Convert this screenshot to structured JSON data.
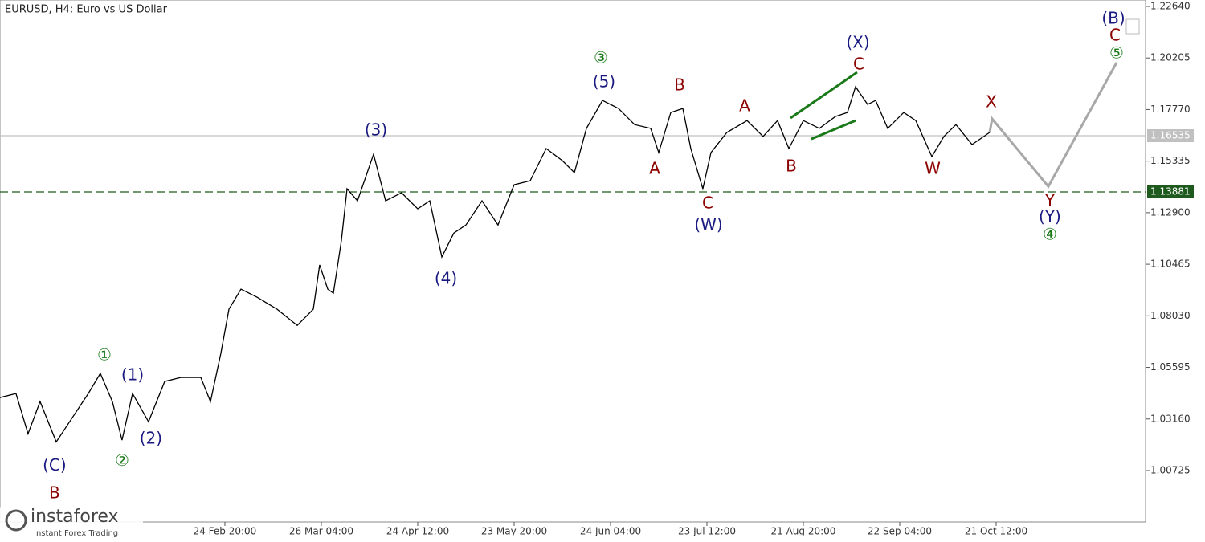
{
  "chart_data": {
    "type": "line",
    "title": "EURUSD, H4:  Euro vs US Dollar",
    "xlim": [
      -0.333,
      11.55
    ],
    "ylim": [
      0.98298,
      1.22943
    ],
    "xticks": [
      {
        "value": 2,
        "label": "24 Feb 20:00"
      },
      {
        "value": 3,
        "label": "26 Mar 04:00"
      },
      {
        "value": 4,
        "label": "24 Apr 12:00"
      },
      {
        "value": 5,
        "label": "23 May 20:00"
      },
      {
        "value": 6,
        "label": "24 Jun 04:00"
      },
      {
        "value": 7,
        "label": "23 Jul 12:00"
      },
      {
        "value": 8,
        "label": "21 Aug 20:00"
      },
      {
        "value": 9,
        "label": "22 Sep 04:00"
      },
      {
        "value": 10,
        "label": "21 Oct 12:00"
      }
    ],
    "yticks": [
      {
        "value": 1.2264,
        "label": "1.22640"
      },
      {
        "value": 1.20205,
        "label": "1.20205"
      },
      {
        "value": 1.1777,
        "label": "1.17770"
      },
      {
        "value": 1.15335,
        "label": "1.15335"
      },
      {
        "value": 1.129,
        "label": "1.12900"
      },
      {
        "value": 1.10465,
        "label": "1.10465"
      },
      {
        "value": 1.0803,
        "label": "1.08030"
      },
      {
        "value": 1.05595,
        "label": "1.05595"
      },
      {
        "value": 1.0316,
        "label": "1.03160"
      },
      {
        "value": 1.00725,
        "label": "1.00725"
      }
    ],
    "series": [
      {
        "color": "#000000",
        "x": [
          -0.333,
          -0.167,
          -0.042,
          0.083,
          0.25,
          0.417,
          0.583,
          0.708,
          0.833,
          0.933,
          1.042,
          1.208,
          1.375,
          1.542,
          1.75,
          1.85,
          1.958,
          2.042,
          2.167,
          2.333,
          2.542,
          2.75,
          2.917,
          2.983,
          3.067,
          3.125,
          3.208,
          3.267,
          3.375,
          3.542,
          3.667,
          3.833,
          4.0,
          4.125,
          4.25,
          4.375,
          4.5,
          4.667,
          4.833,
          5.0,
          5.167,
          5.333,
          5.5,
          5.625,
          5.75,
          5.917,
          6.083,
          6.25,
          6.417,
          6.5,
          6.625,
          6.75,
          6.833,
          6.958,
          7.042,
          7.208,
          7.417,
          7.583,
          7.733,
          7.85,
          8.0,
          8.167,
          8.333,
          8.458,
          8.542,
          8.667,
          8.75,
          8.875,
          9.042,
          9.167,
          9.333,
          9.458,
          9.583,
          9.75,
          9.933
        ],
        "values": [
          1.0417,
          1.0436,
          1.0246,
          1.0398,
          1.0208,
          1.0322,
          1.0436,
          1.0531,
          1.0398,
          1.0216,
          1.0436,
          1.0303,
          1.0493,
          1.0512,
          1.0512,
          1.0398,
          1.0625,
          1.0834,
          1.0929,
          1.0891,
          1.0834,
          1.0758,
          1.0834,
          1.1043,
          1.0929,
          1.091,
          1.1156,
          1.1403,
          1.1346,
          1.1566,
          1.1346,
          1.1384,
          1.1308,
          1.1346,
          1.1081,
          1.1194,
          1.1232,
          1.1346,
          1.1232,
          1.1422,
          1.1441,
          1.1593,
          1.1536,
          1.1479,
          1.1688,
          1.182,
          1.1782,
          1.1706,
          1.1688,
          1.1574,
          1.1763,
          1.1782,
          1.1593,
          1.1403,
          1.1574,
          1.1669,
          1.1725,
          1.165,
          1.1725,
          1.1593,
          1.1725,
          1.1688,
          1.1744,
          1.1763,
          1.1885,
          1.1801,
          1.182,
          1.1688,
          1.1763,
          1.1725,
          1.1555,
          1.165,
          1.1706,
          1.1612,
          1.1669
        ]
      },
      {
        "color": "#a8a8a8",
        "x": [
          9.933,
          9.958,
          10.542,
          11.25
        ],
        "values": [
          1.1669,
          1.1733,
          1.1414,
          1.1999
        ]
      }
    ],
    "price_lines": [
      {
        "value": 1.16535,
        "color": "#c0c0c0",
        "dashed": false
      },
      {
        "value": 1.13881,
        "color": "#1e5a1e",
        "dashed": true
      }
    ],
    "trendlines": [
      {
        "color": "#1a7a1a",
        "x": [
          7.867,
          8.558
        ],
        "y": [
          1.1737,
          1.1953
        ]
      },
      {
        "color": "#1a7a1a",
        "x": [
          8.083,
          8.542
        ],
        "y": [
          1.1638,
          1.1725
        ]
      }
    ],
    "annotations": [
      {
        "text": "(C)",
        "x": 0.233,
        "y": 1.0094,
        "color": "#1a1a80"
      },
      {
        "text": "B",
        "x": 0.233,
        "y": 0.9962,
        "color": "#8b0000"
      },
      {
        "text": "①",
        "x": 0.75,
        "y": 1.0614,
        "color": "#1a7a1a"
      },
      {
        "text": "(1)",
        "x": 1.042,
        "y": 1.0519,
        "color": "#1a1a80"
      },
      {
        "text": "②",
        "x": 0.933,
        "y": 1.0117,
        "color": "#1a7a1a"
      },
      {
        "text": "(2)",
        "x": 1.233,
        "y": 1.022,
        "color": "#1a1a80"
      },
      {
        "text": "(3)",
        "x": 3.567,
        "y": 1.1676,
        "color": "#1a1a80"
      },
      {
        "text": "(4)",
        "x": 4.292,
        "y": 1.0974,
        "color": "#1a1a80"
      },
      {
        "text": "③",
        "x": 5.9,
        "y": 1.2018,
        "color": "#1a7a1a"
      },
      {
        "text": "(5)",
        "x": 5.933,
        "y": 1.1904,
        "color": "#1a1a80"
      },
      {
        "text": "A",
        "x": 6.458,
        "y": 1.1494,
        "color": "#8b0000"
      },
      {
        "text": "B",
        "x": 6.717,
        "y": 1.1889,
        "color": "#8b0000"
      },
      {
        "text": "C",
        "x": 7.008,
        "y": 1.1331,
        "color": "#8b0000"
      },
      {
        "text": "(W)",
        "x": 7.017,
        "y": 1.1229,
        "color": "#1a1a80"
      },
      {
        "text": "A",
        "x": 7.392,
        "y": 1.179,
        "color": "#8b0000"
      },
      {
        "text": "B",
        "x": 7.875,
        "y": 1.1505,
        "color": "#8b0000"
      },
      {
        "text": "C",
        "x": 8.575,
        "y": 1.1987,
        "color": "#8b0000"
      },
      {
        "text": "(X)",
        "x": 8.567,
        "y": 1.209,
        "color": "#1a1a80"
      },
      {
        "text": "W",
        "x": 9.342,
        "y": 1.1494,
        "color": "#8b0000"
      },
      {
        "text": "X",
        "x": 9.95,
        "y": 1.1809,
        "color": "#8b0000"
      },
      {
        "text": "Y",
        "x": 10.558,
        "y": 1.1342,
        "color": "#8b0000"
      },
      {
        "text": "(Y)",
        "x": 10.558,
        "y": 1.1267,
        "color": "#1a1a80"
      },
      {
        "text": "④",
        "x": 10.558,
        "y": 1.1183,
        "color": "#1a7a1a"
      },
      {
        "text": "(B)",
        "x": 11.217,
        "y": 1.2203,
        "color": "#1a1a80"
      },
      {
        "text": "C",
        "x": 11.233,
        "y": 1.2124,
        "color": "#8b0000"
      },
      {
        "text": "⑤",
        "x": 11.25,
        "y": 1.204,
        "color": "#1a7a1a"
      }
    ],
    "watermark": {
      "brand": "instaforex",
      "tagline": "Instant Forex Trading"
    }
  }
}
